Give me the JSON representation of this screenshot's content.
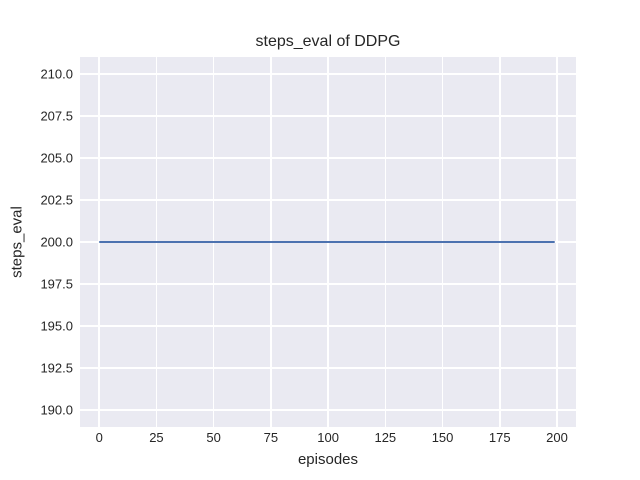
{
  "chart_data": {
    "type": "line",
    "title": "steps_eval of DDPG",
    "xlabel": "episodes",
    "ylabel": "steps_eval",
    "series": [
      {
        "name": "steps_eval",
        "color": "#4c72b0",
        "x": [
          0,
          199
        ],
        "y": [
          200,
          200
        ]
      }
    ],
    "x_ticks": [
      0,
      25,
      50,
      75,
      100,
      125,
      150,
      175,
      200
    ],
    "x_tick_labels": [
      "0",
      "25",
      "50",
      "75",
      "100",
      "125",
      "150",
      "175",
      "200"
    ],
    "y_ticks": [
      190.0,
      192.5,
      195.0,
      197.5,
      200.0,
      202.5,
      205.0,
      207.5,
      210.0
    ],
    "y_tick_labels": [
      "190.0",
      "192.5",
      "195.0",
      "197.5",
      "200.0",
      "202.5",
      "205.0",
      "207.5",
      "210.0"
    ],
    "xlim": [
      -8.4,
      208.3
    ],
    "ylim": [
      189.0,
      211.0
    ],
    "grid": true,
    "legend": false,
    "colors": {
      "figure_background": "#ffffff",
      "axes_background": "#eaeaf2",
      "grid": "#ffffff",
      "text": "#262626",
      "line": "#4c72b0"
    }
  }
}
